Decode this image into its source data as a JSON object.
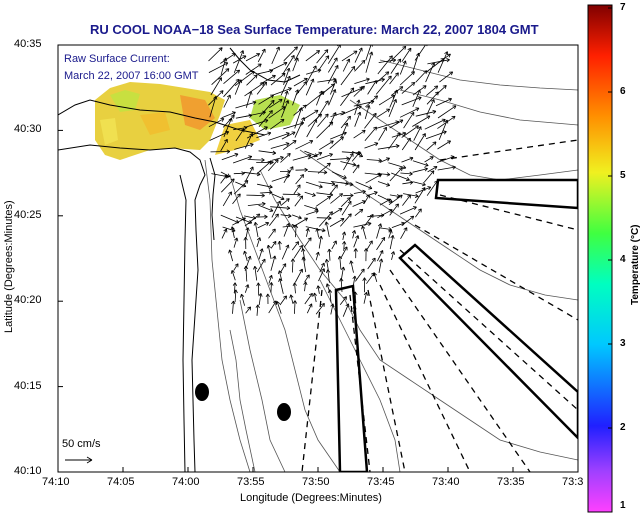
{
  "title": "RU COOL  NOAA−18  Sea Surface Temperature:  March 22, 2007 1804 GMT",
  "inset": {
    "line1": "Raw Surface Current:",
    "line2": "March 22, 2007 16:00 GMT"
  },
  "axes": {
    "xlabel": "Longitude (Degrees:Minutes)",
    "ylabel": "Latitude (Degrees:Minutes)",
    "xticks": [
      "74:10",
      "74:05",
      "74:00",
      "73:55",
      "73:50",
      "73:45",
      "73:40",
      "73:35",
      "73:3"
    ],
    "yticks": [
      "40:35",
      "40:30",
      "40:25",
      "40:20",
      "40:15",
      "40:10"
    ]
  },
  "colorbar": {
    "label": "Temperature (°C)",
    "ticks": [
      "7",
      "6",
      "5",
      "4",
      "3",
      "2",
      "1"
    ],
    "min": 1,
    "max": 7
  },
  "scale": {
    "label": "50 cm/s"
  },
  "colors": {
    "title": "#1a1a8c",
    "coast": "#000000",
    "contour": "#555555"
  }
}
